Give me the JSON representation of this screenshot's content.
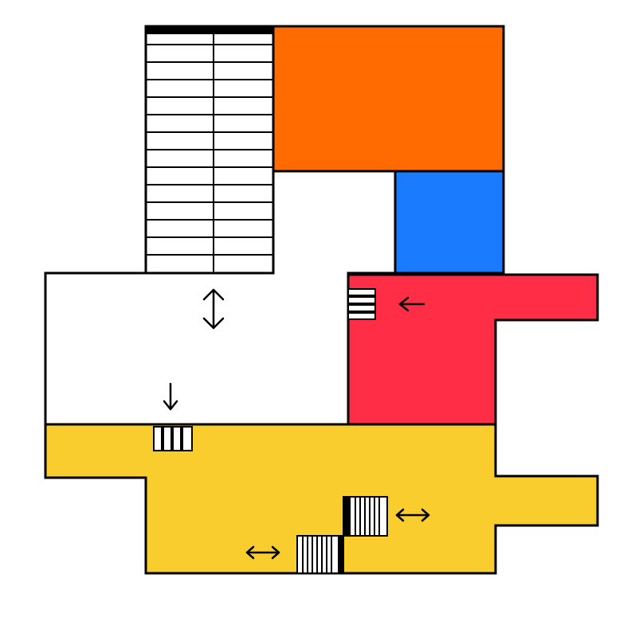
{
  "floor_plan": {
    "colors": {
      "orange_room": "#FF6B00",
      "blue_room": "#1A7BFF",
      "red_room": "#FF2D45",
      "yellow_room": "#FACD2F",
      "white_room": "#FFFFFF",
      "outline": "#000000"
    },
    "rooms": [
      {
        "name": "orange-room",
        "color": "orange"
      },
      {
        "name": "blue-room",
        "color": "blue"
      },
      {
        "name": "red-room",
        "color": "red"
      },
      {
        "name": "yellow-room",
        "color": "yellow"
      },
      {
        "name": "white-room",
        "color": "white"
      }
    ],
    "staircases": [
      {
        "name": "large-staircase",
        "steps": 14,
        "columns": 2
      },
      {
        "name": "yellow-stair-upper",
        "steps": 8
      },
      {
        "name": "yellow-stair-lower",
        "steps": 8
      }
    ],
    "arrows": [
      {
        "name": "vertical-double-arrow",
        "icon": "up-down-arrow-icon"
      },
      {
        "name": "red-door-arrow",
        "icon": "left-arrow-icon"
      },
      {
        "name": "yellow-door-arrow",
        "icon": "down-arrow-icon"
      },
      {
        "name": "upper-stair-arrow",
        "icon": "left-right-arrow-icon"
      },
      {
        "name": "lower-stair-arrow",
        "icon": "left-right-arrow-icon"
      }
    ]
  }
}
